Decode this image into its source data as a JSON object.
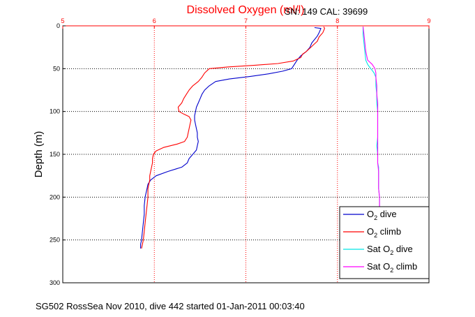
{
  "chart_data": {
    "type": "line",
    "title": "Dissolved Oxygen (ml/l)",
    "subtitle": "SN: 149  CAL: 39699",
    "xlabel": "",
    "ylabel": "Depth (m)",
    "footer": "SG502 RossSea Nov 2010, dive 442 started 01-Jan-2011 00:03:40",
    "xlim": [
      5,
      9
    ],
    "ylim": [
      0,
      300
    ],
    "y_reversed": true,
    "x_axis_position": "top",
    "grid": true,
    "legend_position": "bottom-right",
    "xticks": [
      "5",
      "6",
      "7",
      "8",
      "9"
    ],
    "yticks": [
      "0",
      "50",
      "100",
      "150",
      "200",
      "250",
      "300"
    ],
    "xtick_values": [
      5,
      6,
      7,
      8,
      9
    ],
    "ytick_values": [
      0,
      50,
      100,
      150,
      200,
      250,
      300
    ],
    "series": [
      {
        "name": "O2 dive",
        "legend_main": "O",
        "legend_sub": "2",
        "legend_rest": " dive",
        "color": "#0000cc",
        "points": [
          [
            7.75,
            2
          ],
          [
            7.82,
            3
          ],
          [
            7.8,
            8
          ],
          [
            7.78,
            12
          ],
          [
            7.72,
            20
          ],
          [
            7.7,
            25
          ],
          [
            7.66,
            30
          ],
          [
            7.6,
            35
          ],
          [
            7.56,
            40
          ],
          [
            7.53,
            45
          ],
          [
            7.5,
            50
          ],
          [
            7.4,
            53
          ],
          [
            7.25,
            56
          ],
          [
            7.05,
            59
          ],
          [
            6.82,
            62
          ],
          [
            6.67,
            65
          ],
          [
            6.6,
            70
          ],
          [
            6.55,
            75
          ],
          [
            6.52,
            80
          ],
          [
            6.5,
            85
          ],
          [
            6.48,
            90
          ],
          [
            6.46,
            95
          ],
          [
            6.45,
            100
          ],
          [
            6.44,
            105
          ],
          [
            6.44,
            110
          ],
          [
            6.45,
            115
          ],
          [
            6.46,
            120
          ],
          [
            6.47,
            125
          ],
          [
            6.47,
            130
          ],
          [
            6.48,
            135
          ],
          [
            6.47,
            140
          ],
          [
            6.46,
            145
          ],
          [
            6.42,
            150
          ],
          [
            6.38,
            155
          ],
          [
            6.36,
            160
          ],
          [
            6.3,
            165
          ],
          [
            6.15,
            170
          ],
          [
            6.02,
            175
          ],
          [
            5.96,
            180
          ],
          [
            5.93,
            185
          ],
          [
            5.92,
            190
          ],
          [
            5.91,
            195
          ],
          [
            5.9,
            200
          ],
          [
            5.89,
            210
          ],
          [
            5.89,
            220
          ],
          [
            5.88,
            230
          ],
          [
            5.87,
            240
          ],
          [
            5.86,
            250
          ],
          [
            5.85,
            255
          ],
          [
            5.85,
            260
          ]
        ]
      },
      {
        "name": "O2 climb",
        "legend_main": "O",
        "legend_sub": "2",
        "legend_rest": " climb",
        "color": "#ff0000",
        "points": [
          [
            7.85,
            1
          ],
          [
            7.86,
            3
          ],
          [
            7.84,
            8
          ],
          [
            7.8,
            13
          ],
          [
            7.78,
            18
          ],
          [
            7.74,
            22
          ],
          [
            7.7,
            26
          ],
          [
            7.66,
            30
          ],
          [
            7.62,
            33
          ],
          [
            7.6,
            37
          ],
          [
            7.52,
            41
          ],
          [
            7.35,
            44
          ],
          [
            7.1,
            46
          ],
          [
            6.8,
            48
          ],
          [
            6.6,
            50
          ],
          [
            6.55,
            55
          ],
          [
            6.52,
            60
          ],
          [
            6.48,
            65
          ],
          [
            6.42,
            70
          ],
          [
            6.38,
            75
          ],
          [
            6.35,
            80
          ],
          [
            6.32,
            85
          ],
          [
            6.3,
            90
          ],
          [
            6.26,
            95
          ],
          [
            6.27,
            100
          ],
          [
            6.32,
            103
          ],
          [
            6.38,
            106
          ],
          [
            6.4,
            110
          ],
          [
            6.39,
            115
          ],
          [
            6.38,
            120
          ],
          [
            6.37,
            125
          ],
          [
            6.36,
            130
          ],
          [
            6.33,
            135
          ],
          [
            6.25,
            138
          ],
          [
            6.1,
            142
          ],
          [
            6.02,
            146
          ],
          [
            5.99,
            150
          ],
          [
            5.98,
            155
          ],
          [
            5.98,
            160
          ],
          [
            5.97,
            165
          ],
          [
            5.96,
            170
          ],
          [
            5.95,
            175
          ],
          [
            5.95,
            180
          ],
          [
            5.94,
            185
          ],
          [
            5.93,
            190
          ],
          [
            5.93,
            200
          ],
          [
            5.92,
            210
          ],
          [
            5.91,
            220
          ],
          [
            5.9,
            230
          ],
          [
            5.89,
            240
          ],
          [
            5.88,
            250
          ],
          [
            5.87,
            255
          ],
          [
            5.86,
            260
          ]
        ]
      },
      {
        "name": "Sat O2 dive",
        "legend_main": "Sat O",
        "legend_sub": "2",
        "legend_rest": " dive",
        "color": "#00e5e5",
        "points": [
          [
            8.28,
            1
          ],
          [
            8.28,
            10
          ],
          [
            8.29,
            20
          ],
          [
            8.3,
            30
          ],
          [
            8.31,
            40
          ],
          [
            8.33,
            45
          ],
          [
            8.35,
            48
          ],
          [
            8.38,
            52
          ],
          [
            8.4,
            55
          ],
          [
            8.42,
            60
          ],
          [
            8.42,
            70
          ],
          [
            8.43,
            80
          ],
          [
            8.43,
            90
          ],
          [
            8.44,
            100
          ],
          [
            8.44,
            110
          ],
          [
            8.44,
            120
          ],
          [
            8.44,
            130
          ],
          [
            8.43,
            140
          ],
          [
            8.44,
            150
          ],
          [
            8.44,
            160
          ],
          [
            8.45,
            165
          ],
          [
            8.45,
            170
          ],
          [
            8.45,
            180
          ],
          [
            8.45,
            190
          ],
          [
            8.46,
            200
          ],
          [
            8.46,
            210
          ],
          [
            8.46,
            220
          ],
          [
            8.46,
            230
          ]
        ]
      },
      {
        "name": "Sat O2 climb",
        "legend_main": "Sat O",
        "legend_sub": "2",
        "legend_rest": " climb",
        "color": "#ff00ff",
        "points": [
          [
            8.28,
            1
          ],
          [
            8.29,
            10
          ],
          [
            8.3,
            20
          ],
          [
            8.31,
            30
          ],
          [
            8.33,
            40
          ],
          [
            8.38,
            45
          ],
          [
            8.41,
            50
          ],
          [
            8.42,
            55
          ],
          [
            8.42,
            60
          ],
          [
            8.43,
            70
          ],
          [
            8.43,
            80
          ],
          [
            8.44,
            90
          ],
          [
            8.44,
            100
          ],
          [
            8.44,
            110
          ],
          [
            8.44,
            120
          ],
          [
            8.44,
            130
          ],
          [
            8.44,
            140
          ],
          [
            8.44,
            150
          ],
          [
            8.44,
            160
          ],
          [
            8.45,
            170
          ],
          [
            8.45,
            180
          ],
          [
            8.45,
            190
          ],
          [
            8.46,
            200
          ],
          [
            8.46,
            210
          ],
          [
            8.46,
            220
          ],
          [
            8.46,
            230
          ]
        ]
      }
    ]
  }
}
